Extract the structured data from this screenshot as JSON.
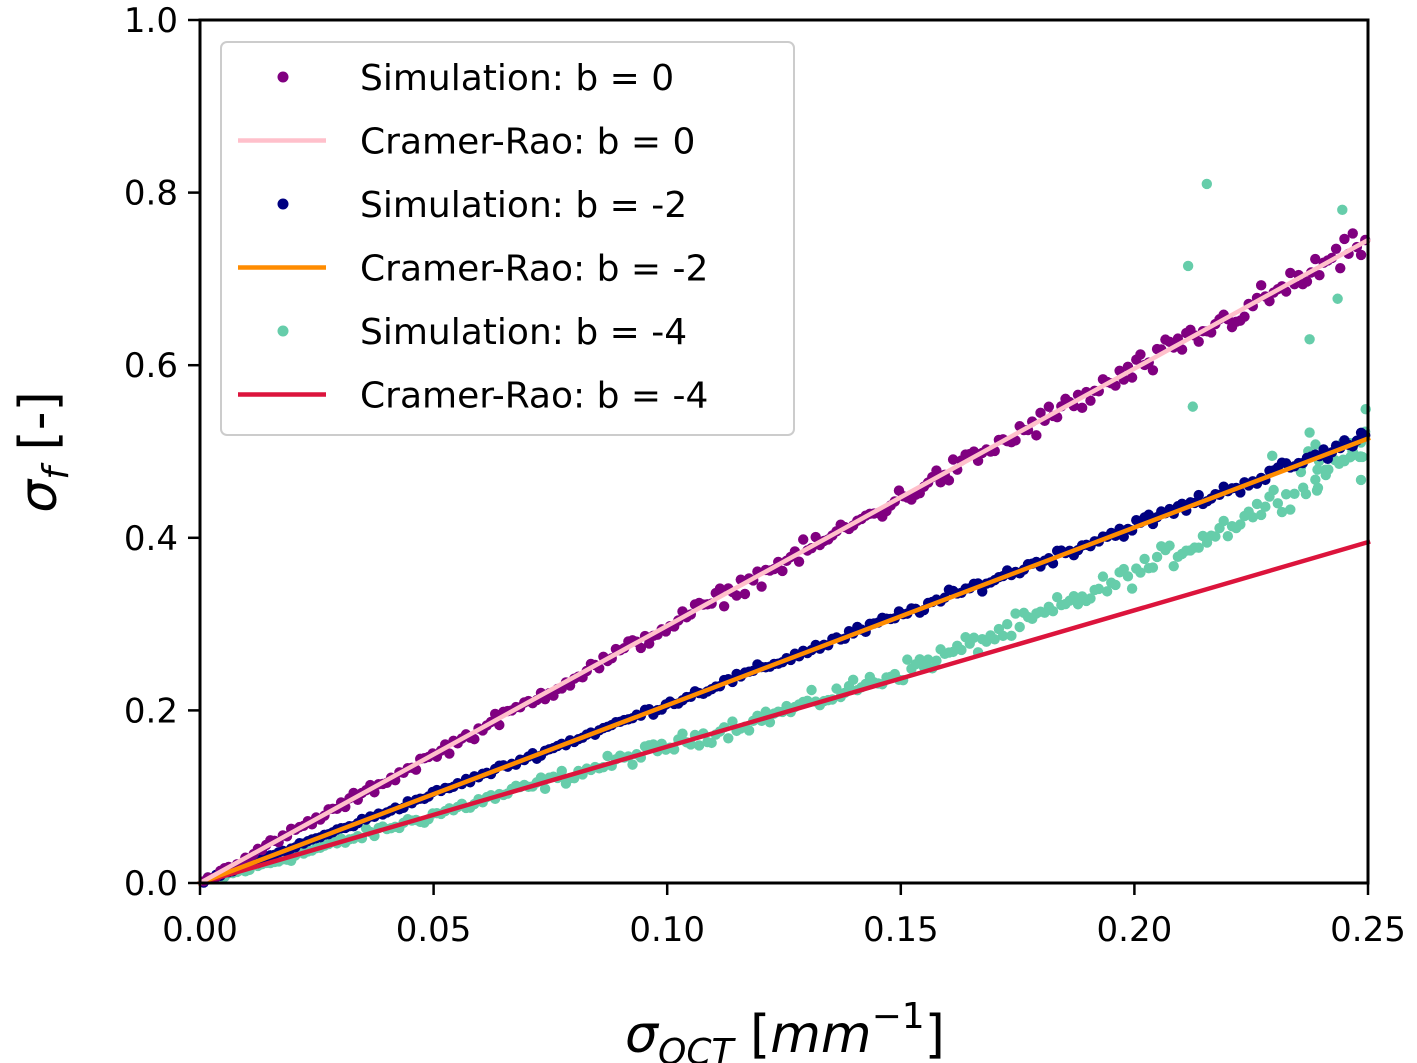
{
  "chart_data": {
    "type": "scatter",
    "title": "",
    "xlabel": {
      "symbol": "σ",
      "subscript": "OCT",
      "unit_open": " [",
      "unit_base": "mm",
      "unit_sup": "−1",
      "unit_close": "]"
    },
    "ylabel": {
      "symbol": "σ",
      "subscript": "f",
      "unit": " [-]"
    },
    "xlim": [
      0.0,
      0.25
    ],
    "ylim": [
      0.0,
      1.0
    ],
    "xticks": [
      "0.00",
      "0.05",
      "0.10",
      "0.15",
      "0.20",
      "0.25"
    ],
    "yticks": [
      "0.0",
      "0.2",
      "0.4",
      "0.6",
      "0.8",
      "1.0"
    ],
    "grid": false,
    "legend_position": "top-left",
    "series": [
      {
        "name": "Simulation: b = 0",
        "kind": "scatter",
        "color": "#800080",
        "slope": 2.97,
        "noise": 0.012
      },
      {
        "name": "Cramer-Rao: b = 0",
        "kind": "line",
        "color": "#ffc0cb",
        "x": [
          0.0,
          0.25
        ],
        "y": [
          0.0,
          0.745
        ]
      },
      {
        "name": "Simulation: b = -2",
        "kind": "scatter",
        "color": "#000080",
        "slope": 2.07,
        "noise": 0.006
      },
      {
        "name": "Cramer-Rao: b = -2",
        "kind": "line",
        "color": "#ff8c00",
        "x": [
          0.0,
          0.25
        ],
        "y": [
          0.0,
          0.515
        ]
      },
      {
        "name": "Simulation: b = -4",
        "kind": "scatter",
        "color": "#66cdaa",
        "slope_low": 1.58,
        "curvature": 9.0,
        "noise": 0.01,
        "outliers": [
          [
            0.2155,
            0.81
          ],
          [
            0.2445,
            0.78
          ],
          [
            0.2115,
            0.715
          ],
          [
            0.2435,
            0.677
          ],
          [
            0.2375,
            0.63
          ],
          [
            0.2125,
            0.552
          ],
          [
            0.2495,
            0.549
          ],
          [
            0.2375,
            0.522
          ],
          [
            0.2465,
            0.495
          ],
          [
            0.2295,
            0.495
          ],
          [
            0.2485,
            0.467
          ]
        ]
      },
      {
        "name": "Cramer-Rao: b = -4",
        "kind": "line",
        "color": "#dc143c",
        "x": [
          0.0,
          0.25
        ],
        "y": [
          0.0,
          0.395
        ]
      }
    ]
  }
}
